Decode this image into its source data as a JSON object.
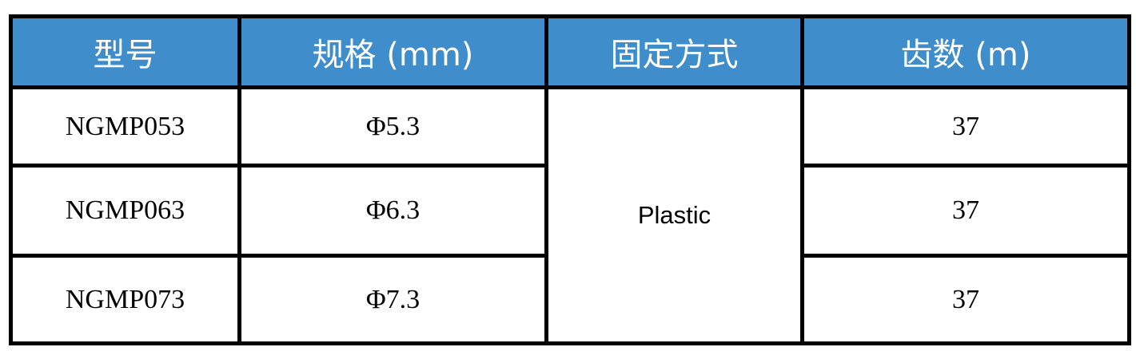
{
  "colors": {
    "header_bg": "#3f8dcb",
    "header_text": "#ffffff",
    "border": "#000000"
  },
  "table": {
    "headers": [
      "型号",
      "规格 (mm)",
      "固定方式",
      "齿数 (m)"
    ],
    "rows": [
      {
        "model": "NGMP053",
        "spec": "Φ5.3",
        "teeth": "37"
      },
      {
        "model": "NGMP063",
        "spec": "Φ6.3",
        "teeth": "37"
      },
      {
        "model": "NGMP073",
        "spec": "Φ7.3",
        "teeth": "37"
      }
    ],
    "fixing_merged": "Plastic"
  }
}
